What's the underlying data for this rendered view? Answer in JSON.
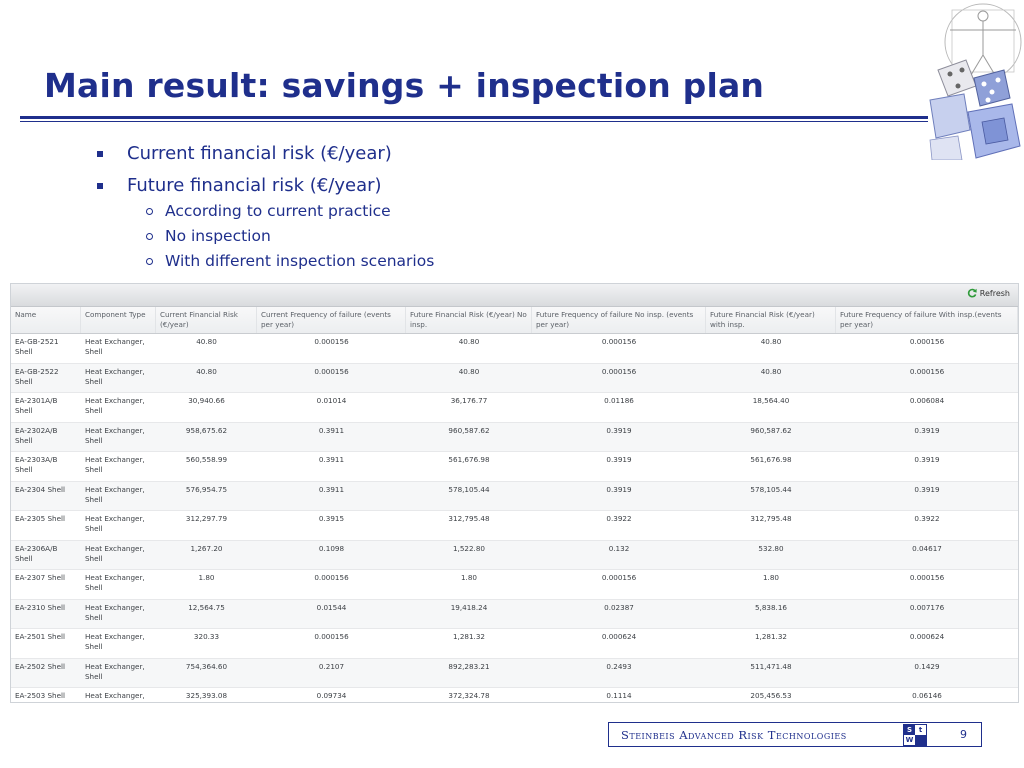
{
  "slide": {
    "title": "Main result: savings + inspection plan",
    "page_number": "9",
    "footer_company": "Steinbeis Advanced Risk Technologies",
    "logo_text": "StW"
  },
  "bullets": [
    {
      "level": 1,
      "text": "Current financial risk (€/year)"
    },
    {
      "level": 1,
      "text": "Future financial risk (€/year)"
    },
    {
      "level": 2,
      "text": "According to current practice"
    },
    {
      "level": 2,
      "text": "No inspection"
    },
    {
      "level": 2,
      "text": "With different inspection scenarios"
    }
  ],
  "grid": {
    "refresh_label": "Refresh",
    "columns": [
      "Name",
      "Component Type",
      "Current Financial Risk (€/year)",
      "Current Frequency of failure (events per year)",
      "Future Financial Risk (€/year) No insp.",
      "Future Frequency of failure No insp. (events per year)",
      "Future Financial Risk (€/year) with insp.",
      "Future Frequency of failure With insp.(events per year)"
    ],
    "rows": [
      [
        "EA-GB-2521 Shell",
        "Heat Exchanger, Shell",
        "40.80",
        "0.000156",
        "40.80",
        "0.000156",
        "40.80",
        "0.000156"
      ],
      [
        "EA-GB-2522 Shell",
        "Heat Exchanger, Shell",
        "40.80",
        "0.000156",
        "40.80",
        "0.000156",
        "40.80",
        "0.000156"
      ],
      [
        "EA-2301A/B Shell",
        "Heat Exchanger, Shell",
        "30,940.66",
        "0.01014",
        "36,176.77",
        "0.01186",
        "18,564.40",
        "0.006084"
      ],
      [
        "EA-2302A/B Shell",
        "Heat Exchanger, Shell",
        "958,675.62",
        "0.3911",
        "960,587.62",
        "0.3919",
        "960,587.62",
        "0.3919"
      ],
      [
        "EA-2303A/B Shell",
        "Heat Exchanger, Shell",
        "560,558.99",
        "0.3911",
        "561,676.98",
        "0.3919",
        "561,676.98",
        "0.3919"
      ],
      [
        "EA-2304 Shell",
        "Heat Exchanger, Shell",
        "576,954.75",
        "0.3911",
        "578,105.44",
        "0.3919",
        "578,105.44",
        "0.3919"
      ],
      [
        "EA-2305 Shell",
        "Heat Exchanger, Shell",
        "312,297.79",
        "0.3915",
        "312,795.48",
        "0.3922",
        "312,795.48",
        "0.3922"
      ],
      [
        "EA-2306A/B Shell",
        "Heat Exchanger, Shell",
        "1,267.20",
        "0.1098",
        "1,522.80",
        "0.132",
        "532.80",
        "0.04617"
      ],
      [
        "EA-2307 Shell",
        "Heat Exchanger, Shell",
        "1.80",
        "0.000156",
        "1.80",
        "0.000156",
        "1.80",
        "0.000156"
      ],
      [
        "EA-2310 Shell",
        "Heat Exchanger, Shell",
        "12,564.75",
        "0.01544",
        "19,418.24",
        "0.02387",
        "5,838.16",
        "0.007176"
      ],
      [
        "EA-2501 Shell",
        "Heat Exchanger, Shell",
        "320.33",
        "0.000156",
        "1,281.32",
        "0.000624",
        "1,281.32",
        "0.000624"
      ],
      [
        "EA-2502 Shell",
        "Heat Exchanger, Shell",
        "754,364.60",
        "0.2107",
        "892,283.21",
        "0.2493",
        "511,471.48",
        "0.1429"
      ],
      [
        "EA-2503 Shell",
        "Heat Exchanger, Shell",
        "325,393.08",
        "0.09734",
        "372,324.78",
        "0.1114",
        "205,456.53",
        "0.06146"
      ]
    ]
  }
}
